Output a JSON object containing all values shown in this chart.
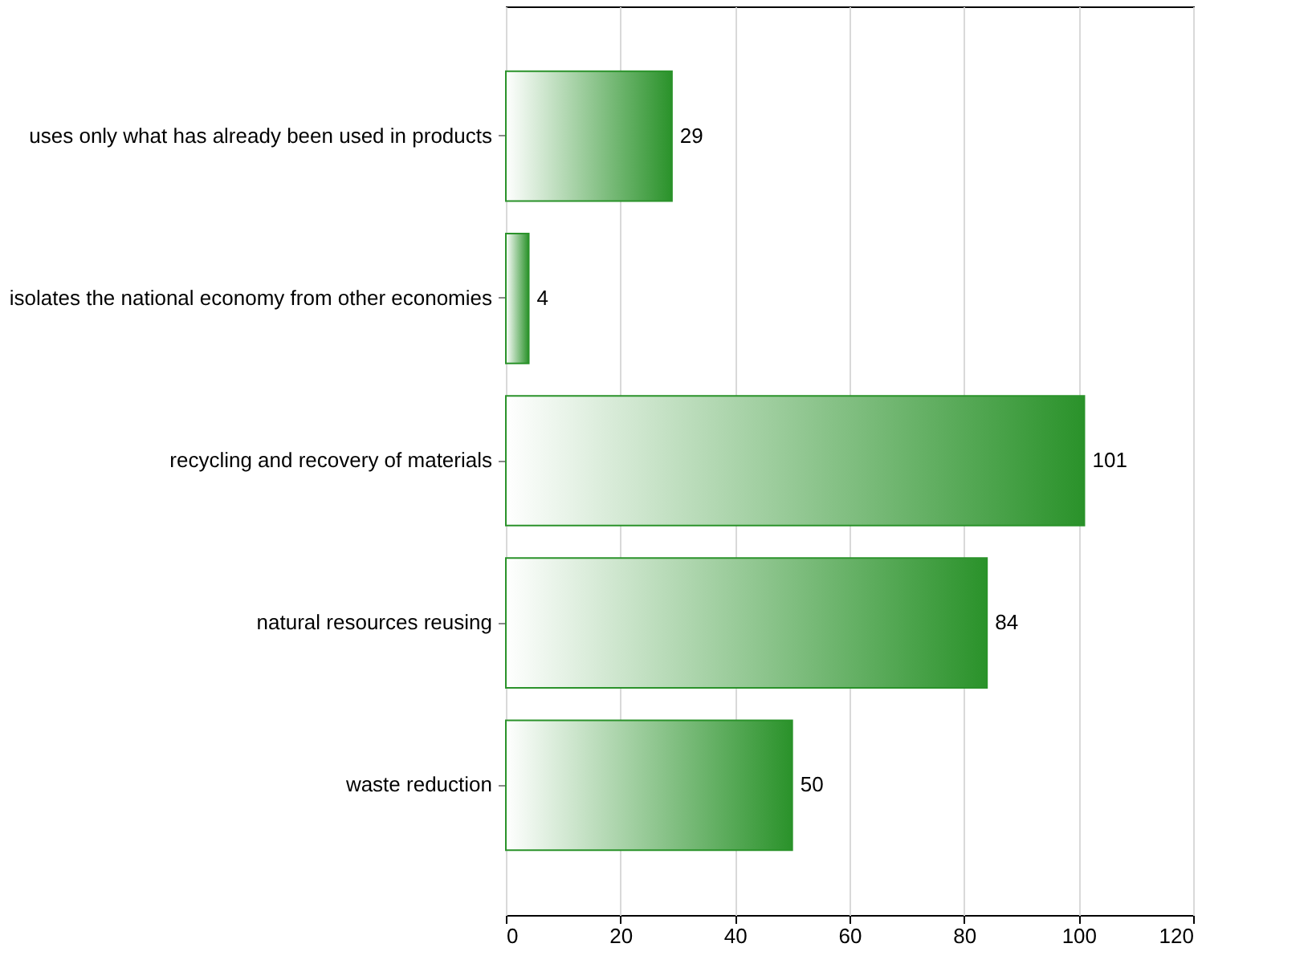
{
  "chart_data": {
    "type": "bar",
    "orientation": "horizontal",
    "categories": [
      "uses only what has already been used in products",
      "isolates the national economy from other economies",
      "recycling and recovery of materials",
      "natural resources reusing",
      "waste reduction"
    ],
    "values": [
      29,
      4,
      101,
      84,
      50
    ],
    "color": "#2a922a",
    "xlim": [
      0,
      120
    ],
    "xticks": [
      0,
      20,
      40,
      60,
      80,
      100,
      120
    ],
    "grid": "x",
    "data_labels": true
  }
}
